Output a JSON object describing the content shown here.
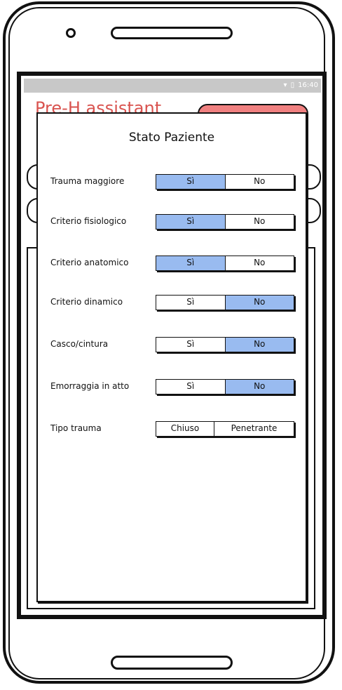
{
  "status_bar": {
    "time": "16:40"
  },
  "app": {
    "title": "Pre-H assistant"
  },
  "dialog": {
    "title": "Stato Paziente",
    "rows": [
      {
        "label": "Trauma maggiore",
        "options": [
          "Sì",
          "No"
        ],
        "selected": "Sì"
      },
      {
        "label": "Criterio fisiologico",
        "options": [
          "Sì",
          "No"
        ],
        "selected": "Sì"
      },
      {
        "label": "Criterio anatomico",
        "options": [
          "Sì",
          "No"
        ],
        "selected": "Sì"
      },
      {
        "label": "Criterio dinamico",
        "options": [
          "Sì",
          "No"
        ],
        "selected": "No"
      },
      {
        "label": "Casco/cintura",
        "options": [
          "Sì",
          "No"
        ],
        "selected": "No"
      },
      {
        "label": "Emorraggia in atto",
        "options": [
          "Sì",
          "No"
        ],
        "selected": "No"
      },
      {
        "label": "Tipo trauma",
        "options": [
          "Chiuso",
          "Penetrante"
        ],
        "selected": null
      }
    ]
  },
  "colors": {
    "selected": "#99bbf0",
    "app_title": "#d9534f",
    "app_button": "#f08080"
  }
}
